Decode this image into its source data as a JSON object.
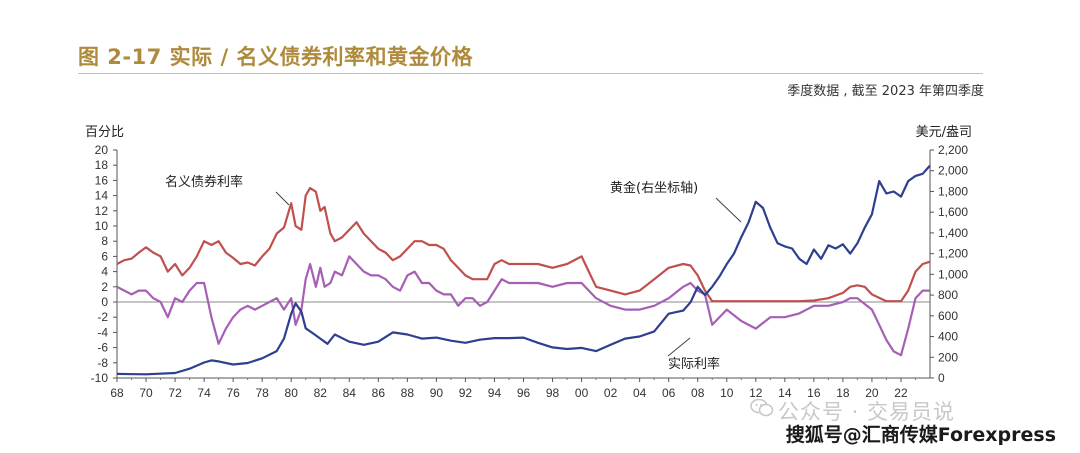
{
  "header": {
    "title": "图 2-17  实际 / 名义债券利率和黄金价格",
    "subtitle": "季度数据 , 截至 2023 年第四季度"
  },
  "watermark": {
    "text": "公众号 · 交易员说",
    "icon": "wechat-icon"
  },
  "credit": {
    "text": "搜狐号@汇商传媒Forexpress"
  },
  "colors": {
    "nominal": "#c0504d",
    "real": "#a65fb5",
    "gold": "#2e3f8f",
    "title": "#b08a3c",
    "zero": "#888888"
  },
  "chart_data": {
    "type": "line",
    "xlabel": "",
    "ylabel_left": "百分比",
    "ylabel_right": "美元/盎司",
    "x_ticks": [
      "68",
      "70",
      "72",
      "74",
      "76",
      "78",
      "80",
      "82",
      "84",
      "86",
      "88",
      "90",
      "92",
      "94",
      "96",
      "98",
      "00",
      "02",
      "04",
      "06",
      "08",
      "10",
      "12",
      "14",
      "16",
      "18",
      "20",
      "22"
    ],
    "y_left_ticks": [
      "20",
      "18",
      "16",
      "14",
      "12",
      "10",
      "8",
      "6",
      "4",
      "2",
      "0",
      "-2",
      "-4",
      "-6",
      "-8",
      "-10"
    ],
    "y_right_ticks": [
      "2,200",
      "2,000",
      "1,800",
      "1,600",
      "1,400",
      "1,200",
      "1,000",
      "800",
      "600",
      "400",
      "200",
      "0"
    ],
    "ylim_left": [
      -10,
      20
    ],
    "ylim_right": [
      0,
      2200
    ],
    "xlim": [
      1968,
      2024
    ],
    "grid": false,
    "annotations": [
      {
        "text": "名义债券利率",
        "series": "nominal"
      },
      {
        "text": "黄金(右坐标轴)",
        "series": "gold"
      },
      {
        "text": "实际利率",
        "series": "real"
      }
    ],
    "series": [
      {
        "name": "名义债券利率",
        "axis": "left",
        "x": [
          1968,
          1968.5,
          1969,
          1969.5,
          1970,
          1970.5,
          1971,
          1971.5,
          1972,
          1972.5,
          1973,
          1973.5,
          1974,
          1974.5,
          1975,
          1975.5,
          1976,
          1976.5,
          1977,
          1977.5,
          1978,
          1978.5,
          1979,
          1979.5,
          1980,
          1980.3,
          1980.7,
          1981,
          1981.3,
          1981.7,
          1982,
          1982.3,
          1982.7,
          1983,
          1983.5,
          1984,
          1984.5,
          1985,
          1985.5,
          1986,
          1986.5,
          1987,
          1987.5,
          1988,
          1988.5,
          1989,
          1989.5,
          1990,
          1990.5,
          1991,
          1991.5,
          1992,
          1992.5,
          1993,
          1993.5,
          1994,
          1994.5,
          1995,
          1995.5,
          1996,
          1997,
          1998,
          1999,
          2000,
          2000.5,
          2001,
          2002,
          2003,
          2004,
          2005,
          2006,
          2007,
          2007.5,
          2008,
          2008.5,
          2009,
          2010,
          2012,
          2014,
          2015,
          2016,
          2017,
          2018,
          2018.5,
          2019,
          2019.5,
          2020,
          2021,
          2021.5,
          2022,
          2022.5,
          2023,
          2023.5,
          2024
        ],
        "values": [
          5.0,
          5.5,
          5.7,
          6.5,
          7.2,
          6.5,
          6.0,
          4.0,
          5.0,
          3.5,
          4.5,
          6.0,
          8.0,
          7.5,
          8.0,
          6.5,
          5.8,
          5.0,
          5.2,
          4.8,
          6.0,
          7.0,
          9.0,
          9.8,
          13.0,
          10.0,
          9.5,
          14.0,
          15.0,
          14.5,
          12.0,
          12.5,
          9.0,
          8.0,
          8.5,
          9.5,
          10.5,
          9.0,
          8.0,
          7.0,
          6.5,
          5.5,
          6.0,
          7.0,
          8.0,
          8.0,
          7.5,
          7.5,
          7.0,
          5.5,
          4.5,
          3.5,
          3.0,
          3.0,
          3.0,
          5.0,
          5.5,
          5.0,
          5.0,
          5.0,
          5.0,
          4.5,
          5.0,
          6.0,
          4.0,
          2.0,
          1.5,
          1.0,
          1.5,
          3.0,
          4.5,
          5.0,
          4.8,
          3.5,
          1.5,
          0.1,
          0.1,
          0.1,
          0.1,
          0.1,
          0.2,
          0.5,
          1.2,
          2.0,
          2.2,
          2.0,
          1.0,
          0.1,
          0.1,
          0.1,
          1.5,
          4.0,
          5.0,
          5.3
        ]
      },
      {
        "name": "实际利率",
        "axis": "left",
        "x": [
          1968,
          1968.5,
          1969,
          1969.5,
          1970,
          1970.5,
          1971,
          1971.5,
          1972,
          1972.5,
          1973,
          1973.5,
          1974,
          1974.5,
          1975,
          1975.5,
          1976,
          1976.5,
          1977,
          1977.5,
          1978,
          1978.5,
          1979,
          1979.5,
          1980,
          1980.3,
          1980.7,
          1981,
          1981.3,
          1981.7,
          1982,
          1982.3,
          1982.7,
          1983,
          1983.5,
          1984,
          1984.5,
          1985,
          1985.5,
          1986,
          1986.5,
          1987,
          1987.5,
          1988,
          1988.5,
          1989,
          1989.5,
          1990,
          1990.5,
          1991,
          1991.5,
          1992,
          1992.5,
          1993,
          1993.5,
          1994,
          1994.5,
          1995,
          1995.5,
          1996,
          1997,
          1998,
          1999,
          2000,
          2000.5,
          2001,
          2002,
          2003,
          2004,
          2005,
          2006,
          2007,
          2007.5,
          2008,
          2008.5,
          2009,
          2010,
          2011,
          2012,
          2013,
          2014,
          2015,
          2016,
          2017,
          2018,
          2018.5,
          2019,
          2020,
          2020.5,
          2021,
          2021.5,
          2022,
          2022.5,
          2023,
          2023.5,
          2024
        ],
        "values": [
          2.0,
          1.5,
          1.0,
          1.5,
          1.5,
          0.5,
          0.0,
          -2.0,
          0.5,
          0.0,
          1.5,
          2.5,
          2.5,
          -2.0,
          -5.5,
          -3.5,
          -2.0,
          -1.0,
          -0.5,
          -1.0,
          -0.5,
          0.0,
          0.5,
          -1.0,
          0.5,
          -3.0,
          -1.0,
          3.0,
          5.0,
          2.0,
          4.5,
          2.0,
          2.5,
          4.0,
          3.5,
          6.0,
          5.0,
          4.0,
          3.5,
          3.5,
          3.0,
          2.0,
          1.5,
          3.5,
          4.0,
          2.5,
          2.5,
          1.5,
          1.0,
          1.0,
          -0.5,
          0.5,
          0.5,
          -0.5,
          0.0,
          1.5,
          3.0,
          2.5,
          2.5,
          2.5,
          2.5,
          2.0,
          2.5,
          2.5,
          1.5,
          0.5,
          -0.5,
          -1.0,
          -1.0,
          -0.5,
          0.5,
          2.0,
          2.5,
          1.5,
          1.0,
          -3.0,
          -1.0,
          -2.5,
          -3.5,
          -2.0,
          -2.0,
          -1.5,
          -0.5,
          -0.5,
          0.0,
          0.5,
          0.5,
          -1.0,
          -3.0,
          -5.0,
          -6.5,
          -7.0,
          -3.5,
          0.5,
          1.5,
          1.5
        ]
      },
      {
        "name": "黄金(右坐标轴)",
        "axis": "right",
        "x": [
          1968,
          1970,
          1972,
          1973,
          1974,
          1974.5,
          1975,
          1976,
          1977,
          1978,
          1979,
          1979.5,
          1980,
          1980.3,
          1980.7,
          1981,
          1981.5,
          1982,
          1982.5,
          1983,
          1984,
          1985,
          1986,
          1987,
          1988,
          1989,
          1990,
          1991,
          1992,
          1993,
          1994,
          1995,
          1996,
          1997,
          1998,
          1999,
          2000,
          2001,
          2002,
          2003,
          2004,
          2005,
          2006,
          2007,
          2007.5,
          2008,
          2008.5,
          2009,
          2009.5,
          2010,
          2010.5,
          2011,
          2011.5,
          2012,
          2012.5,
          2013,
          2013.5,
          2014,
          2014.5,
          2015,
          2015.5,
          2016,
          2016.5,
          2017,
          2017.5,
          2018,
          2018.5,
          2019,
          2019.5,
          2020,
          2020.5,
          2021,
          2021.5,
          2022,
          2022.5,
          2023,
          2023.5,
          2024
        ],
        "values": [
          40,
          36,
          48,
          90,
          150,
          170,
          160,
          130,
          145,
          190,
          260,
          380,
          620,
          720,
          640,
          480,
          430,
          380,
          330,
          420,
          350,
          320,
          350,
          440,
          420,
          380,
          390,
          360,
          340,
          370,
          385,
          385,
          390,
          340,
          295,
          280,
          290,
          260,
          320,
          380,
          400,
          450,
          620,
          650,
          730,
          880,
          800,
          880,
          980,
          1100,
          1200,
          1360,
          1500,
          1700,
          1640,
          1450,
          1300,
          1270,
          1250,
          1150,
          1100,
          1240,
          1150,
          1280,
          1250,
          1290,
          1200,
          1300,
          1450,
          1580,
          1900,
          1780,
          1800,
          1750,
          1900,
          1950,
          1970,
          2050
        ]
      }
    ]
  }
}
